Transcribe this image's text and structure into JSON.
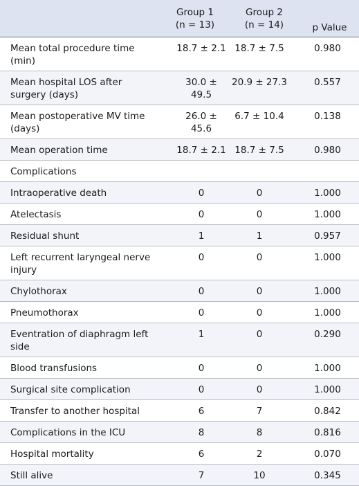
{
  "header": {
    "group1_line1": "Group 1",
    "group1_line2": "(n = 13)",
    "group2_line1": "Group 2",
    "group2_line2": "(n = 14)",
    "p_value": "p Value"
  },
  "rows": [
    {
      "label": "Mean total procedure time (min)",
      "g1": "18.7 ± 2.1",
      "g2": "18.7 ± 7.5",
      "p": "0.980"
    },
    {
      "label": "Mean hospital LOS after surgery (days)",
      "g1": "30.0 ± 49.5",
      "g2": "20.9 ± 27.3",
      "p": "0.557"
    },
    {
      "label": "Mean postoperative MV time (days)",
      "g1": "26.0 ± 45.6",
      "g2": "6.7 ± 10.4",
      "p": "0.138"
    },
    {
      "label": "Mean operation time",
      "g1": "18.7 ± 2.1",
      "g2": "18.7 ± 7.5",
      "p": "0.980"
    },
    {
      "label": "Complications",
      "g1": "",
      "g2": "",
      "p": ""
    },
    {
      "label": "Intraoperative death",
      "g1": "0",
      "g2": "0",
      "p": "1.000"
    },
    {
      "label": "Atelectasis",
      "g1": "0",
      "g2": "0",
      "p": "1.000"
    },
    {
      "label": "Residual shunt",
      "g1": "1",
      "g2": "1",
      "p": "0.957"
    },
    {
      "label": "Left recurrent laryngeal nerve injury",
      "g1": "0",
      "g2": "0",
      "p": "1.000"
    },
    {
      "label": "Chylothorax",
      "g1": "0",
      "g2": "0",
      "p": "1.000"
    },
    {
      "label": "Pneumothorax",
      "g1": "0",
      "g2": "0",
      "p": "1.000"
    },
    {
      "label": "Eventration of diaphragm left side",
      "g1": "1",
      "g2": "0",
      "p": "0.290"
    },
    {
      "label": "Blood transfusions",
      "g1": "0",
      "g2": "0",
      "p": "1.000"
    },
    {
      "label": "Surgical site complication",
      "g1": "0",
      "g2": "0",
      "p": "1.000"
    },
    {
      "label": "Transfer to another hospital",
      "g1": "6",
      "g2": "7",
      "p": "0.842"
    },
    {
      "label": "Complications in the ICU",
      "g1": "8",
      "g2": "8",
      "p": "0.816"
    },
    {
      "label": "Hospital mortality",
      "g1": "6",
      "g2": "2",
      "p": "0.070"
    },
    {
      "label": "Still alive",
      "g1": "7",
      "g2": "10",
      "p": "0.345"
    }
  ]
}
